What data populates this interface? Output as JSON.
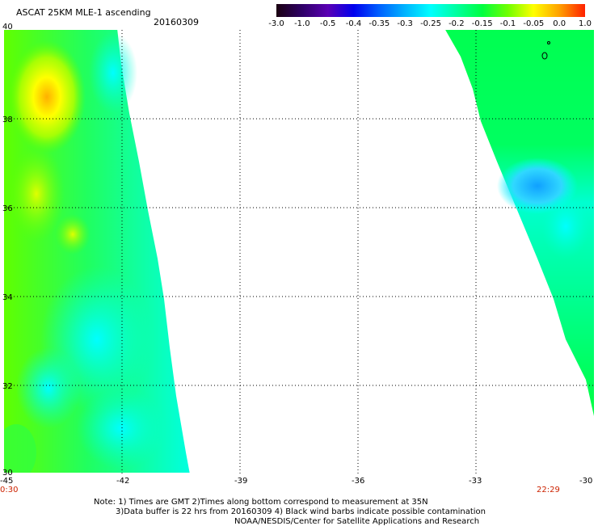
{
  "header": {
    "title": "ASCAT 25KM MLE-1 ascending",
    "date": "20160309"
  },
  "colorbar": {
    "labels": [
      "-3.0",
      "-1.0",
      "-0.5",
      "-0.4",
      "-0.35",
      "-0.3",
      "-0.25",
      "-0.2",
      "-0.15",
      "-0.1",
      "-0.05",
      "0.0",
      "1.0"
    ],
    "colors": [
      "#1a0010",
      "#2e0066",
      "#5a00b4",
      "#0000ee",
      "#0060ff",
      "#00b4ff",
      "#00ffff",
      "#00ffa0",
      "#00ff40",
      "#70ff00",
      "#ffff00",
      "#ffa000",
      "#ff2000"
    ]
  },
  "axes": {
    "x_ticks": [
      "-45",
      "-42",
      "-39",
      "-36",
      "-33",
      "-30"
    ],
    "y_ticks": [
      "40",
      "38",
      "36",
      "34",
      "32",
      "30"
    ],
    "x_range": [
      -45,
      -30
    ],
    "y_range": [
      30,
      40
    ]
  },
  "times": {
    "left": "0:30",
    "right": "22:29"
  },
  "notes": {
    "line1": "Note: 1) Times are GMT 2)Times along bottom correspond to measurement at 35N",
    "line2": "3)Data buffer is 22 hrs from 20160309 4) Black wind barbs indicate possible contamination",
    "line3": "NOAA/NESDIS/Center for Satellite Applications and Research"
  }
}
